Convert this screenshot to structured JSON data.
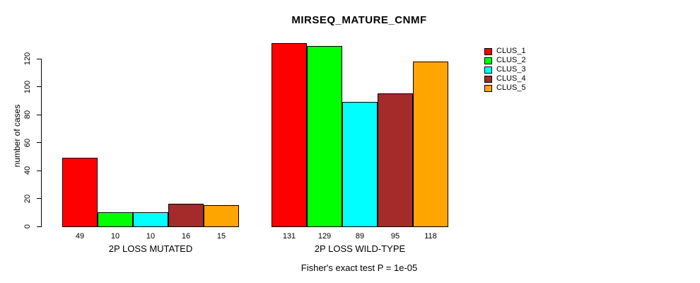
{
  "title": "MIRSEQ_MATURE_CNMF",
  "chart_data": {
    "type": "bar",
    "title": "MIRSEQ_MATURE_CNMF",
    "xlabel": "",
    "ylabel": "number of cases",
    "ylim": [
      0,
      135
    ],
    "y_ticks": [
      0,
      20,
      40,
      60,
      80,
      100,
      120
    ],
    "grid": false,
    "legend_position": "top-right",
    "annotation": "Fisher's exact test P = 1e-05",
    "categories": [
      "2P LOSS MUTATED",
      "2P LOSS WILD-TYPE"
    ],
    "series": [
      {
        "name": "CLUS_1",
        "color": "#ff0000",
        "values": [
          49,
          131
        ]
      },
      {
        "name": "CLUS_2",
        "color": "#00ff00",
        "values": [
          10,
          129
        ]
      },
      {
        "name": "CLUS_3",
        "color": "#00ffff",
        "values": [
          10,
          89
        ]
      },
      {
        "name": "CLUS_4",
        "color": "#a52a2a",
        "values": [
          16,
          95
        ]
      },
      {
        "name": "CLUS_5",
        "color": "#ffa500",
        "values": [
          15,
          118
        ]
      }
    ],
    "bar_value_labels_shown": true
  }
}
